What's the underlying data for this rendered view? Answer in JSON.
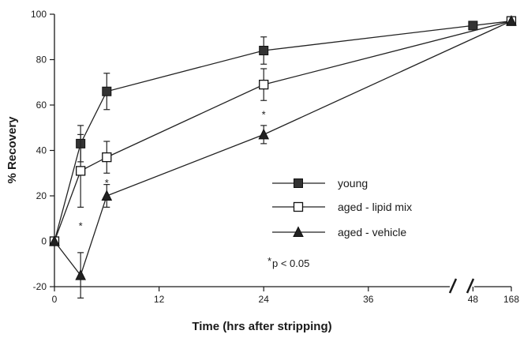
{
  "chart_data": {
    "type": "line",
    "xlabel": "Time (hrs after stripping)",
    "ylabel": "% Recovery",
    "ylim": [
      -20,
      100
    ],
    "y_ticks": [
      -20,
      0,
      20,
      40,
      60,
      80,
      100
    ],
    "x_ticks": [
      "0",
      "12",
      "24",
      "36",
      "48",
      "168"
    ],
    "x_axis_break": "between 48 and 168",
    "grid": false,
    "legend_position": "center-right",
    "series": [
      {
        "name": "young",
        "marker": "filled-square",
        "points": [
          {
            "x": 0,
            "y": 0
          },
          {
            "x": 3,
            "y": 43,
            "err": 8
          },
          {
            "x": 6,
            "y": 66,
            "err": 8
          },
          {
            "x": 24,
            "y": 84,
            "err": 6
          },
          {
            "x": 48,
            "y": 95
          },
          {
            "x": 168,
            "y": 97
          }
        ]
      },
      {
        "name": "aged - lipid mix",
        "marker": "open-square",
        "points": [
          {
            "x": 0,
            "y": 0
          },
          {
            "x": 3,
            "y": 31,
            "err": 16
          },
          {
            "x": 6,
            "y": 37,
            "err": 7
          },
          {
            "x": 24,
            "y": 69,
            "err": 7
          },
          {
            "x": 168,
            "y": 97
          }
        ]
      },
      {
        "name": "aged - vehicle",
        "marker": "filled-triangle",
        "points": [
          {
            "x": 0,
            "y": 0
          },
          {
            "x": 3,
            "y": -15,
            "err": 10
          },
          {
            "x": 6,
            "y": 20,
            "err": 5
          },
          {
            "x": 24,
            "y": 47,
            "err": 4
          },
          {
            "x": 168,
            "y": 97
          }
        ]
      }
    ],
    "significance_marks": [
      {
        "x": 3,
        "y": 7,
        "text": "*"
      },
      {
        "x": 6,
        "y": 26,
        "text": "*"
      },
      {
        "x": 24,
        "y": 56,
        "text": "*"
      }
    ],
    "annotation": {
      "star": "*",
      "text": "p < 0.05"
    }
  }
}
